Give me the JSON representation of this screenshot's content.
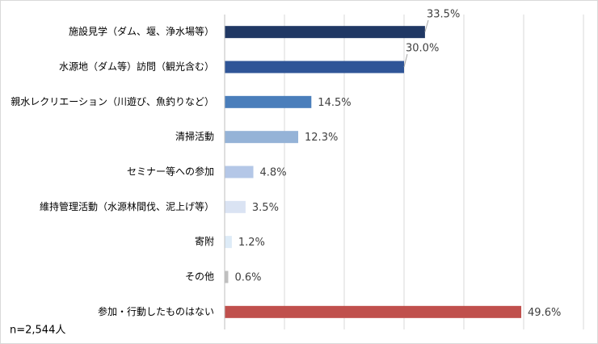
{
  "chart_data": {
    "type": "bar",
    "orientation": "horizontal",
    "categories": [
      "施設見学（ダム、堰、浄水場等）",
      "水源地（ダム等）訪問（観光含む）",
      "親水レクリエーション（川遊び、魚釣りなど）",
      "清掃活動",
      "セミナー等への参加",
      "維持管理活動（水源林間伐、泥上げ等）",
      "寄附",
      "その他",
      "参加・行動したものはない"
    ],
    "values": [
      33.5,
      30.0,
      14.5,
      12.3,
      4.8,
      3.5,
      1.2,
      0.6,
      49.6
    ],
    "value_labels": [
      "33.5%",
      "30.0%",
      "14.5%",
      "12.3%",
      "4.8%",
      "3.5%",
      "1.2%",
      "0.6%",
      "49.6%"
    ],
    "colors": [
      "#203864",
      "#2f5597",
      "#4a7ebb",
      "#95b3d7",
      "#b4c7e7",
      "#dae3f3",
      "#ddebf7",
      "#bfbfbf",
      "#c0504d"
    ],
    "xlim": [
      0,
      60
    ],
    "xticks": [
      0,
      10,
      20,
      30,
      40,
      50,
      60
    ],
    "grid": true,
    "note": "n=2,544人"
  }
}
